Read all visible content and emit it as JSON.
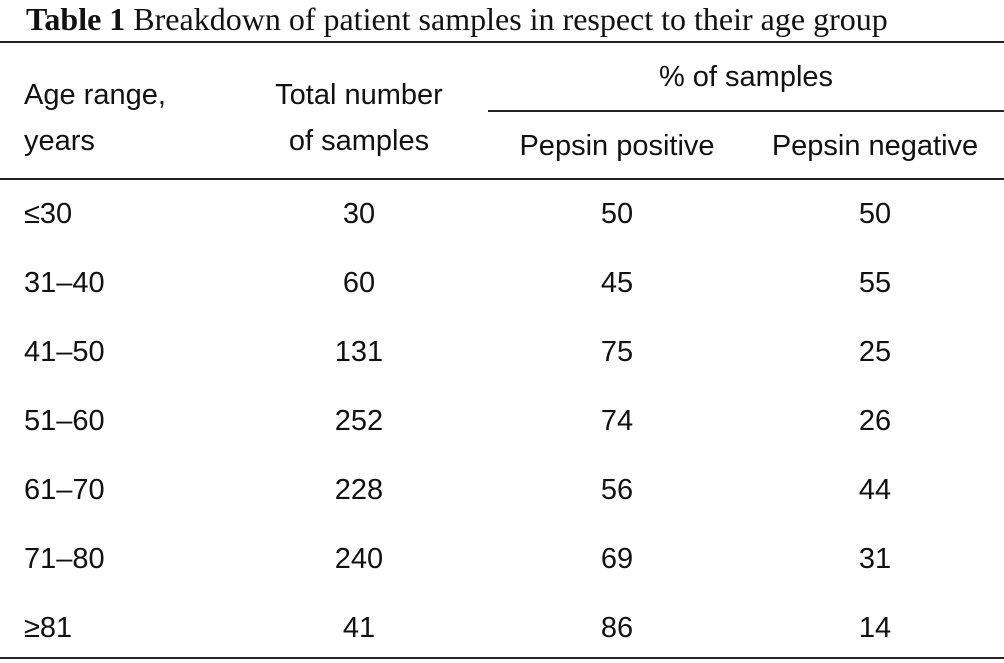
{
  "caption": {
    "label": "Table 1",
    "text": "Breakdown of patient samples in respect to their age group"
  },
  "header": {
    "age_range_line1": "Age range,",
    "age_range_line2": "years",
    "total_line1": "Total number",
    "total_line2": "of samples",
    "percent_group": "% of samples",
    "pepsin_positive": "Pepsin positive",
    "pepsin_negative": "Pepsin negative"
  },
  "rows": [
    {
      "age": "≤30",
      "total": "30",
      "positive": "50",
      "negative": "50"
    },
    {
      "age": "31–40",
      "total": "60",
      "positive": "45",
      "negative": "55"
    },
    {
      "age": "41–50",
      "total": "131",
      "positive": "75",
      "negative": "25"
    },
    {
      "age": "51–60",
      "total": "252",
      "positive": "74",
      "negative": "26"
    },
    {
      "age": "61–70",
      "total": "228",
      "positive": "56",
      "negative": "44"
    },
    {
      "age": "71–80",
      "total": "240",
      "positive": "69",
      "negative": "31"
    },
    {
      "age": "≥81",
      "total": "41",
      "positive": "86",
      "negative": "14"
    }
  ]
}
